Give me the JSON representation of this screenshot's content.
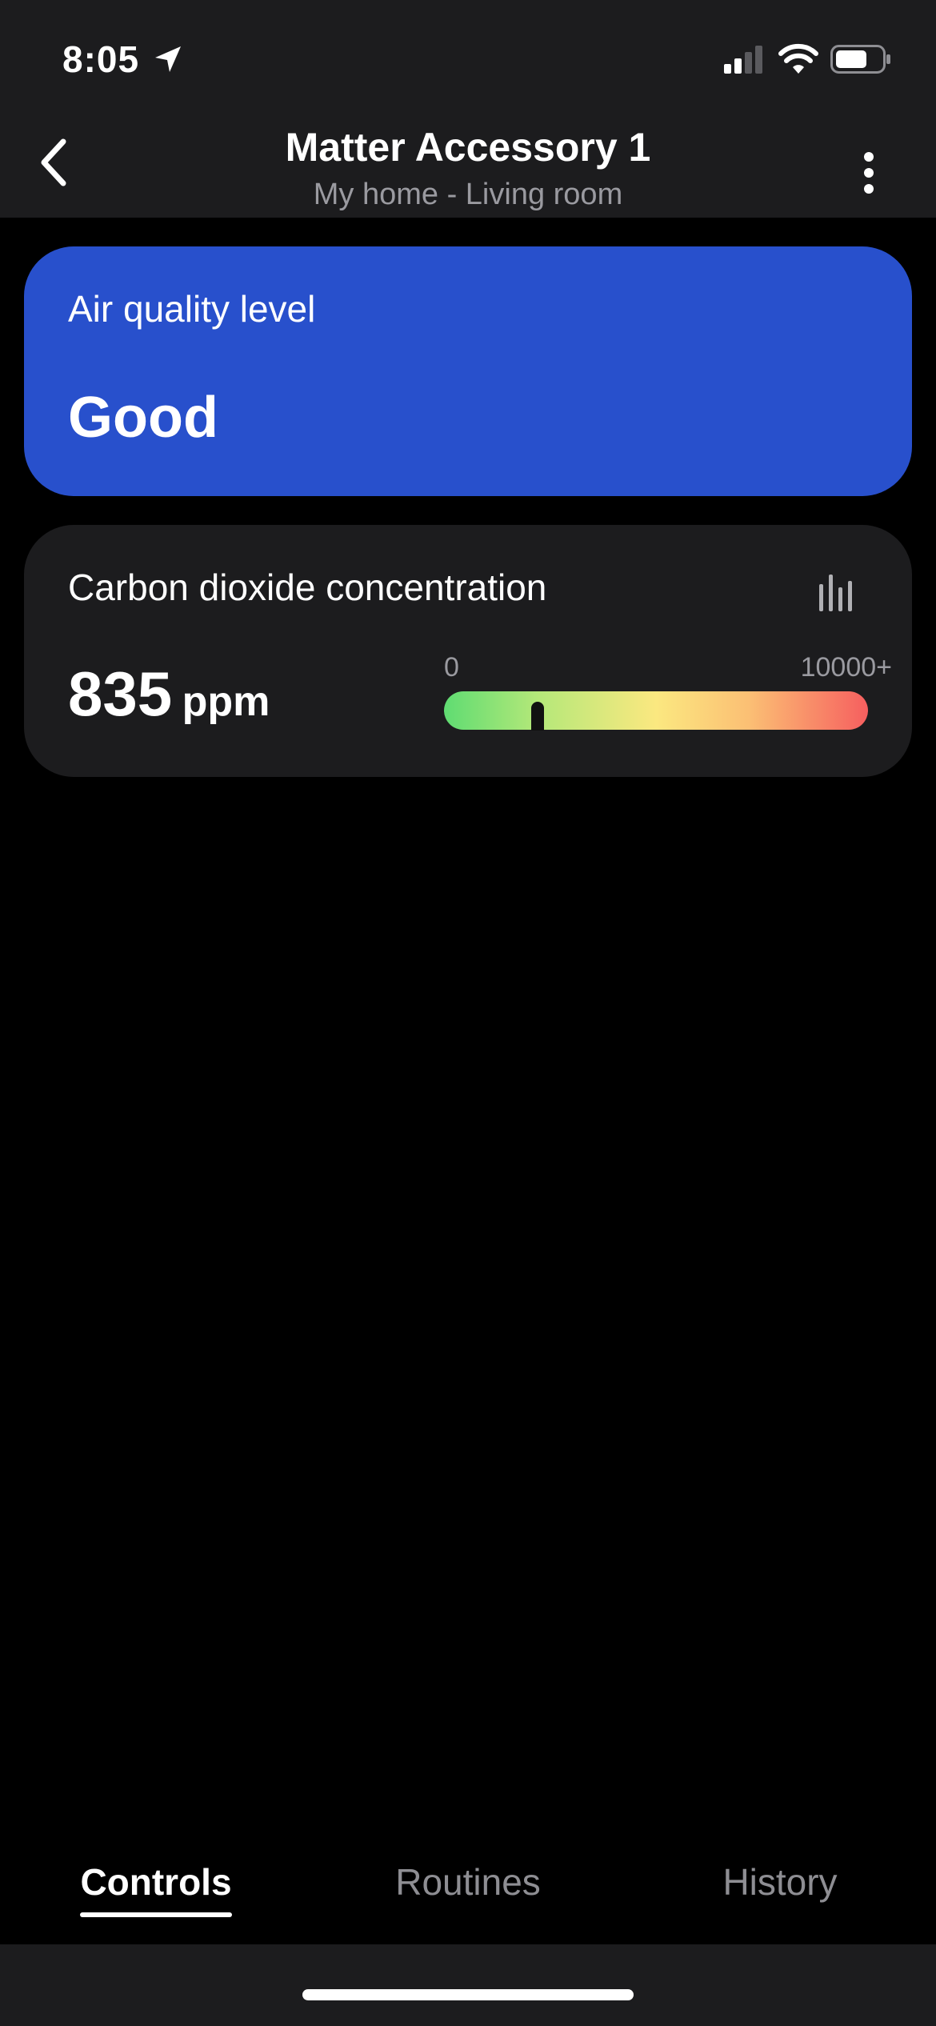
{
  "status_bar": {
    "time": "8:05",
    "icons": [
      "location-arrow-icon",
      "cellular-signal-icon",
      "wifi-icon",
      "battery-icon"
    ]
  },
  "nav": {
    "title": "Matter Accessory 1",
    "subtitle": "My home - Living room",
    "back_icon": "chevron-left-icon",
    "more_icon": "more-vertical-icon"
  },
  "air_quality": {
    "label": "Air quality level",
    "value": "Good",
    "color": "#2850cc"
  },
  "co2": {
    "label": "Carbon dioxide concentration",
    "value": "835",
    "unit": "ppm",
    "scale_min": "0",
    "scale_max": "10000+",
    "level_fraction": 0.22,
    "chart_icon": "bar-chart-icon"
  },
  "tabs": [
    {
      "label": "Controls",
      "active": true
    },
    {
      "label": "Routines",
      "active": false
    },
    {
      "label": "History",
      "active": false
    }
  ],
  "colors": {
    "background": "#000000",
    "surface": "#1c1c1e",
    "accent": "#2850cc",
    "secondary_text": "#9a9aa0"
  }
}
